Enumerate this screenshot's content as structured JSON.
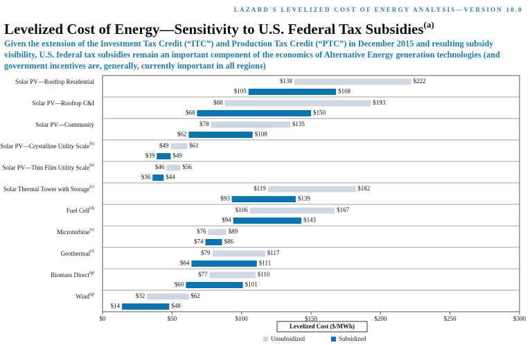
{
  "chart_data": {
    "type": "range-bar",
    "header": "LAZARD'S LEVELIZED COST OF ENERGY ANALYSIS—VERSION 10.0",
    "title": "Levelized Cost of Energy—Sensitivity to U.S. Federal Tax Subsidies",
    "title_note": "(a)",
    "subtitle_lines": [
      "Given the extension of the Investment Tax Credit (“ITC”) and Production Tax Credit (“PTC”) in December 2015 and resulting subsidy",
      "visibility, U.S. federal tax subsidies remain an important component of the economics of Alternative Energy generation technologies (and",
      "government incentives are, generally, currently important in all regions)"
    ],
    "x_label": "Levelized Cost ($/MWh)",
    "categories": [
      "Solar PV—Rooftop Residential",
      "Solar PV—Rooftop C&I",
      "Solar PV—Community",
      "Solar PV—Crystalline Utility Scale",
      "Solar PV—Thin Film Utility Scale",
      "Solar Thermal Tower with Storage",
      "Fuel Cell",
      "Microturbine",
      "Geothermal",
      "Biomass Direct",
      "Wind"
    ],
    "category_notes": [
      null,
      null,
      null,
      "(b)",
      "(b)",
      "(c)",
      "(d)",
      "(e)",
      "(f)",
      "(g)",
      "(g)"
    ],
    "series": [
      {
        "name": "Unsubsidized",
        "color": "#cfd8e0",
        "values": [
          [
            138,
            222
          ],
          [
            88,
            193
          ],
          [
            78,
            135
          ],
          [
            49,
            61
          ],
          [
            46,
            56
          ],
          [
            119,
            182
          ],
          [
            106,
            167
          ],
          [
            76,
            89
          ],
          [
            79,
            117
          ],
          [
            77,
            110
          ],
          [
            32,
            62
          ]
        ],
        "value_labels": [
          [
            "$138",
            "$222"
          ],
          [
            "$88",
            "$193"
          ],
          [
            "$78",
            "$135"
          ],
          [
            "$49",
            "$61"
          ],
          [
            "$46",
            "$56"
          ],
          [
            "$119",
            "$182"
          ],
          [
            "$106",
            "$167"
          ],
          [
            "$76",
            "$89"
          ],
          [
            "$79",
            "$117"
          ],
          [
            "$77",
            "$110"
          ],
          [
            "$32",
            "$62"
          ]
        ]
      },
      {
        "name": "Subsidized",
        "color": "#0b73ad",
        "values": [
          [
            105,
            168
          ],
          [
            68,
            150
          ],
          [
            62,
            108
          ],
          [
            39,
            49
          ],
          [
            36,
            44
          ],
          [
            93,
            139
          ],
          [
            94,
            143
          ],
          [
            74,
            86
          ],
          [
            64,
            111
          ],
          [
            60,
            101
          ],
          [
            14,
            48
          ]
        ],
        "value_labels": [
          [
            "$105",
            "$168"
          ],
          [
            "$68",
            "$150"
          ],
          [
            "$62",
            "$108"
          ],
          [
            "$39",
            "$49"
          ],
          [
            "$36",
            "$44"
          ],
          [
            "$93",
            "$139"
          ],
          [
            "$94",
            "$143"
          ],
          [
            "$74",
            "$86"
          ],
          [
            "$64",
            "$111"
          ],
          [
            "$60",
            "$101"
          ],
          [
            "$14",
            "$48"
          ]
        ]
      }
    ],
    "xlim": [
      0,
      300
    ],
    "xticks": [
      {
        "value": 0,
        "label": "$0"
      },
      {
        "value": 50,
        "label": "$50"
      },
      {
        "value": 100,
        "label": "$100"
      },
      {
        "value": 150,
        "label": "$150"
      },
      {
        "value": 200,
        "label": "$200"
      },
      {
        "value": 250,
        "label": "$250"
      },
      {
        "value": 300,
        "label": "$300"
      }
    ]
  }
}
